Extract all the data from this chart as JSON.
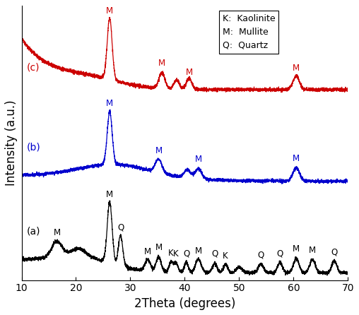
{
  "title": "",
  "xlabel": "2Theta (degrees)",
  "ylabel": "Intensity (a.u.)",
  "xlim": [
    10,
    70
  ],
  "x_ticks": [
    10,
    20,
    30,
    40,
    50,
    60,
    70
  ],
  "colors": {
    "a": "#000000",
    "b": "#0000cd",
    "c": "#cc0000"
  },
  "offsets": {
    "a": 0.0,
    "b": 0.38,
    "c": 0.76
  },
  "legend_lines": [
    "K:  Kaolinite",
    "M:  Mullite",
    "Q:  Quartz"
  ],
  "labels": {
    "a_label": "(a)",
    "b_label": "(b)",
    "c_label": "(c)"
  }
}
